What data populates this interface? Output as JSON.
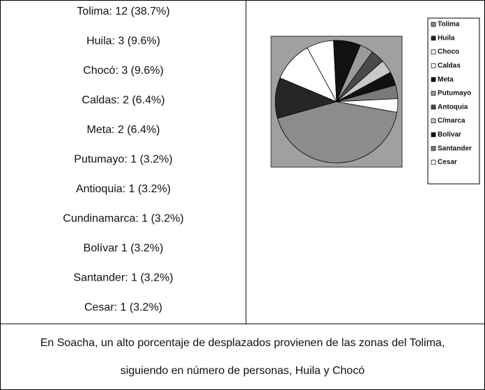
{
  "list": [
    "Tolima: 12 (38.7%)",
    "Huila: 3 (9.6%)",
    "Chocó: 3 (9.6%)",
    "Caldas: 2 (6.4%)",
    "Meta: 2 (6.4%)",
    "Putumayo: 1 (3.2%)",
    "Antioquia: 1 (3.2%)",
    "Cundinamarca: 1 (3.2%)",
    "Bolívar 1 (3.2%)",
    "Santander: 1 (3.2%)",
    "Cesar: 1 (3.2%)"
  ],
  "caption": [
    "En Soacha, un alto porcentaje de desplazados provienen de las zonas del Tolima,",
    "siguiendo en número de personas, Huila y Chocó"
  ],
  "chart_data": {
    "type": "pie",
    "categories": [
      "Tolima",
      "Huila",
      "Choco",
      "Caldas",
      "Meta",
      "Putumayo",
      "Antoquia",
      "C/marca",
      "Bolivar",
      "Santander",
      "Cesar"
    ],
    "values": [
      12,
      3,
      3,
      2,
      2,
      1,
      1,
      1,
      1,
      1,
      1
    ],
    "colors": [
      "#8c8c8c",
      "#262626",
      "#ffffff",
      "#ffffff",
      "#111111",
      "#9a9a9a",
      "#4a4a4a",
      "#c8c8c8",
      "#111111",
      "#7a7a7a",
      "#ffffff"
    ]
  }
}
